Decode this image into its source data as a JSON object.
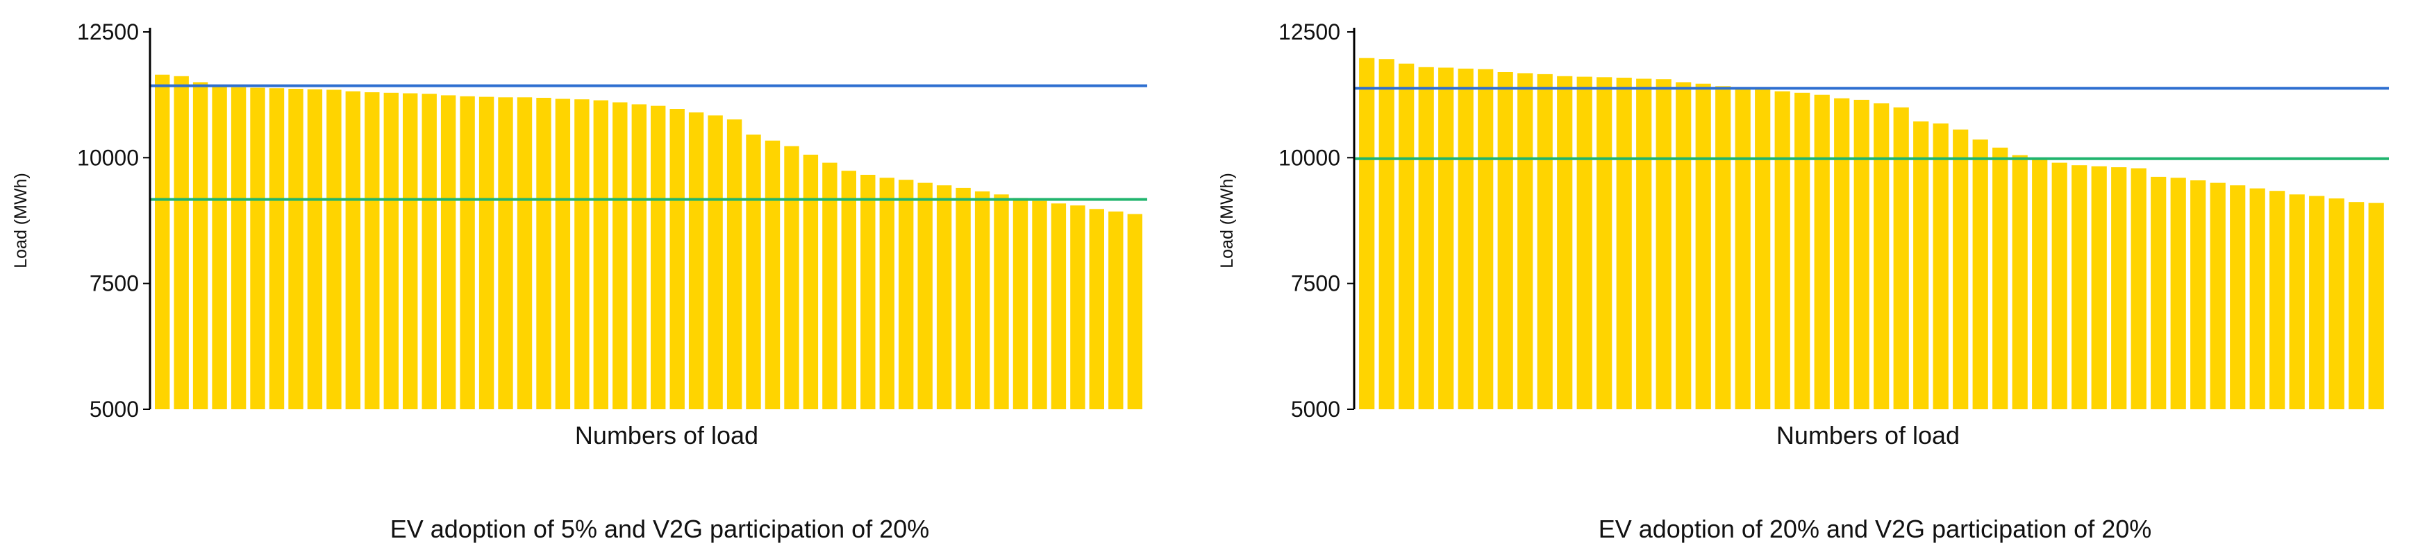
{
  "chart_data": [
    {
      "type": "bar",
      "xlabel": "Numbers of load",
      "ylabel": "Load (MWh)",
      "caption": "EV adoption of 5% and V2G participation of 20%",
      "ylim": [
        5000,
        12500
      ],
      "yticks": [
        5000,
        7500,
        10000,
        12500
      ],
      "grid": false,
      "bar_color": "#FFD400",
      "values": [
        11650,
        11620,
        11500,
        11440,
        11400,
        11390,
        11380,
        11370,
        11360,
        11350,
        11320,
        11300,
        11290,
        11280,
        11270,
        11240,
        11220,
        11210,
        11200,
        11200,
        11190,
        11170,
        11160,
        11140,
        11100,
        11060,
        11030,
        10970,
        10900,
        10840,
        10760,
        10460,
        10340,
        10230,
        10060,
        9900,
        9740,
        9660,
        9600,
        9560,
        9500,
        9450,
        9400,
        9330,
        9270,
        9200,
        9140,
        9090,
        9050,
        8980,
        8930,
        8880
      ],
      "reference_lines": [
        {
          "value": 11430,
          "color": "#2E6FD0"
        },
        {
          "value": 9170,
          "color": "#20B46E"
        }
      ]
    },
    {
      "type": "bar",
      "xlabel": "Numbers of load",
      "ylabel": "Load (MWh)",
      "caption": "EV adoption of 20% and V2G participation of 20%",
      "ylim": [
        5000,
        12500
      ],
      "yticks": [
        5000,
        7500,
        10000,
        12500
      ],
      "grid": false,
      "bar_color": "#FFD400",
      "values": [
        11980,
        11960,
        11870,
        11800,
        11790,
        11770,
        11760,
        11700,
        11680,
        11660,
        11620,
        11610,
        11600,
        11590,
        11570,
        11560,
        11500,
        11470,
        11420,
        11400,
        11370,
        11320,
        11290,
        11250,
        11180,
        11150,
        11080,
        11000,
        10720,
        10680,
        10560,
        10360,
        10200,
        10050,
        9960,
        9900,
        9850,
        9830,
        9810,
        9790,
        9620,
        9600,
        9550,
        9500,
        9450,
        9390,
        9340,
        9270,
        9240,
        9190,
        9120,
        9100
      ],
      "reference_lines": [
        {
          "value": 11380,
          "color": "#2E6FD0"
        },
        {
          "value": 9980,
          "color": "#20B46E"
        }
      ]
    }
  ]
}
